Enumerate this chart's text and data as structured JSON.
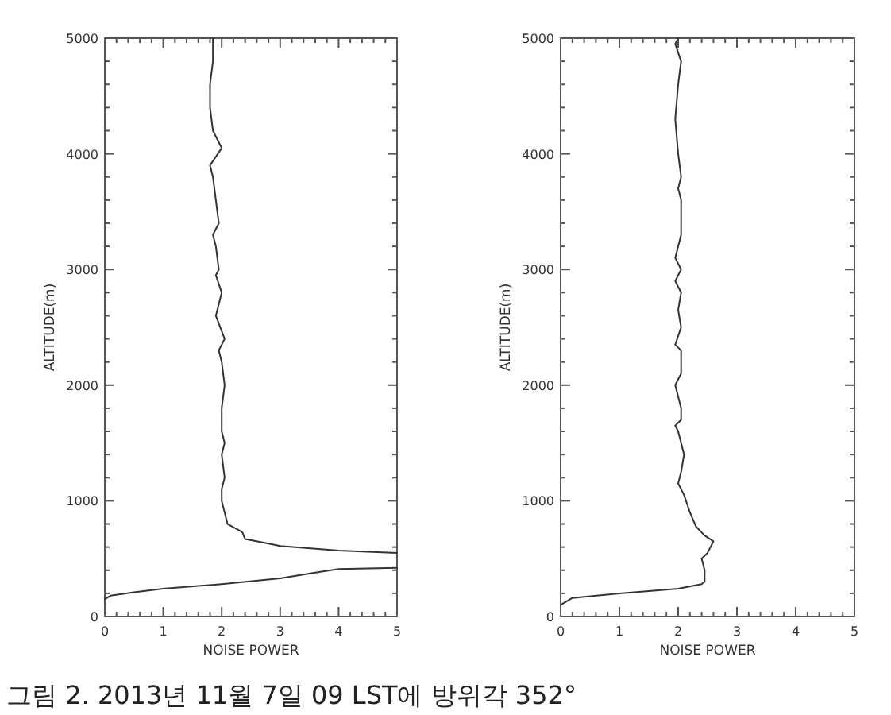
{
  "chart_data": [
    {
      "type": "line",
      "xlabel": "NOISE POWER",
      "ylabel": "ALTITUDE(m)",
      "xlim": [
        0,
        5
      ],
      "ylim": [
        0,
        5000
      ],
      "xticks": [
        0,
        {
          "value": 0.2,
          "label": null
        },
        {
          "value": 0.4,
          "label": null
        },
        {
          "value": 0.6,
          "label": null
        },
        {
          "value": 0.8,
          "label": null
        },
        1,
        {
          "value": 1.2,
          "label": null
        },
        {
          "value": 1.4,
          "label": null
        },
        {
          "value": 1.6,
          "label": null
        },
        {
          "value": 1.8,
          "label": null
        },
        2,
        {
          "value": 2.2,
          "label": null
        },
        {
          "value": 2.4,
          "label": null
        },
        {
          "value": 2.6,
          "label": null
        },
        {
          "value": 2.8,
          "label": null
        },
        3,
        {
          "value": 3.2,
          "label": null
        },
        {
          "value": 3.4,
          "label": null
        },
        {
          "value": 3.6,
          "label": null
        },
        {
          "value": 3.8,
          "label": null
        },
        4,
        {
          "value": 4.2,
          "label": null
        },
        {
          "value": 4.4,
          "label": null
        },
        {
          "value": 4.6,
          "label": null
        },
        {
          "value": 4.8,
          "label": null
        },
        5
      ],
      "yticks": [
        0,
        {
          "value": 200,
          "label": null
        },
        {
          "value": 400,
          "label": null
        },
        {
          "value": 600,
          "label": null
        },
        {
          "value": 800,
          "label": null
        },
        1000,
        {
          "value": 1200,
          "label": null
        },
        {
          "value": 1400,
          "label": null
        },
        {
          "value": 1600,
          "label": null
        },
        {
          "value": 1800,
          "label": null
        },
        2000,
        {
          "value": 2200,
          "label": null
        },
        {
          "value": 2400,
          "label": null
        },
        {
          "value": 2600,
          "label": null
        },
        {
          "value": 2800,
          "label": null
        },
        3000,
        {
          "value": 3200,
          "label": null
        },
        {
          "value": 3400,
          "label": null
        },
        {
          "value": 3600,
          "label": null
        },
        {
          "value": 3800,
          "label": null
        },
        4000,
        {
          "value": 4200,
          "label": null
        },
        {
          "value": 4400,
          "label": null
        },
        {
          "value": 4600,
          "label": null
        },
        {
          "value": 4800,
          "label": null
        },
        5000
      ],
      "series": [
        {
          "color": "#333333",
          "x": [
            0,
            0.1,
            0.5,
            1,
            2,
            3,
            3.6,
            4,
            5,
            null,
            5,
            4,
            3,
            2.7,
            2.4,
            2.35,
            2.1,
            2.05,
            2.0,
            2.0,
            2.05,
            2.0,
            2.05,
            2.0,
            2.0,
            2.05,
            2.0,
            1.95,
            2.05,
            1.9,
            1.95,
            2.0,
            1.9,
            1.95,
            1.9,
            1.85,
            1.95,
            1.9,
            1.85,
            1.8,
            2.0,
            1.9,
            1.85,
            1.8,
            1.8,
            1.85,
            1.85
          ],
          "values": [
            150,
            180,
            210,
            240,
            280,
            330,
            380,
            410,
            420,
            null,
            550,
            570,
            610,
            640,
            670,
            730,
            800,
            900,
            1000,
            1100,
            1200,
            1400,
            1500,
            1600,
            1800,
            2000,
            2200,
            2300,
            2400,
            2600,
            2700,
            2800,
            2950,
            3000,
            3200,
            3300,
            3400,
            3600,
            3800,
            3900,
            4050,
            4150,
            4200,
            4400,
            4600,
            4800,
            5000
          ]
        }
      ],
      "annotations": [
        "그림 2. 2013년 11월 7일 09 LST에 방위각 352°"
      ]
    },
    {
      "type": "line",
      "xlabel": "NOISE POWER",
      "ylabel": "ALTITUDE(m)",
      "xlim": [
        0,
        5
      ],
      "ylim": [
        0,
        5000
      ],
      "xticks": [
        0,
        {
          "value": 0.2,
          "label": null
        },
        {
          "value": 0.4,
          "label": null
        },
        {
          "value": 0.6,
          "label": null
        },
        {
          "value": 0.8,
          "label": null
        },
        1,
        {
          "value": 1.2,
          "label": null
        },
        {
          "value": 1.4,
          "label": null
        },
        {
          "value": 1.6,
          "label": null
        },
        {
          "value": 1.8,
          "label": null
        },
        2,
        {
          "value": 2.2,
          "label": null
        },
        {
          "value": 2.4,
          "label": null
        },
        {
          "value": 2.6,
          "label": null
        },
        {
          "value": 2.8,
          "label": null
        },
        3,
        {
          "value": 3.2,
          "label": null
        },
        {
          "value": 3.4,
          "label": null
        },
        {
          "value": 3.6,
          "label": null
        },
        {
          "value": 3.8,
          "label": null
        },
        4,
        {
          "value": 4.2,
          "label": null
        },
        {
          "value": 4.4,
          "label": null
        },
        {
          "value": 4.6,
          "label": null
        },
        {
          "value": 4.8,
          "label": null
        },
        5
      ],
      "yticks": [
        0,
        {
          "value": 200,
          "label": null
        },
        {
          "value": 400,
          "label": null
        },
        {
          "value": 600,
          "label": null
        },
        {
          "value": 800,
          "label": null
        },
        1000,
        {
          "value": 1200,
          "label": null
        },
        {
          "value": 1400,
          "label": null
        },
        {
          "value": 1600,
          "label": null
        },
        {
          "value": 1800,
          "label": null
        },
        2000,
        {
          "value": 2200,
          "label": null
        },
        {
          "value": 2400,
          "label": null
        },
        {
          "value": 2600,
          "label": null
        },
        {
          "value": 2800,
          "label": null
        },
        3000,
        {
          "value": 3200,
          "label": null
        },
        {
          "value": 3400,
          "label": null
        },
        {
          "value": 3600,
          "label": null
        },
        {
          "value": 3800,
          "label": null
        },
        4000,
        {
          "value": 4200,
          "label": null
        },
        {
          "value": 4400,
          "label": null
        },
        {
          "value": 4600,
          "label": null
        },
        {
          "value": 4800,
          "label": null
        },
        5000
      ],
      "series": [
        {
          "color": "#333333",
          "x": [
            0,
            0.2,
            1,
            2,
            2.4,
            2.45,
            2.45,
            2.4,
            2.5,
            2.6,
            2.45,
            2.3,
            2.2,
            2.1,
            2.0,
            2.05,
            2.1,
            2.05,
            2.0,
            1.95,
            2.05,
            2.05,
            2.0,
            1.95,
            2.05,
            2.05,
            1.95,
            2.05,
            2.0,
            2.05,
            1.95,
            2.05,
            1.95,
            2.05,
            2.05,
            2.0,
            2.05,
            2.0,
            1.95,
            2.0,
            2.05,
            1.95,
            2.0
          ],
          "values": [
            100,
            160,
            200,
            240,
            280,
            300,
            400,
            500,
            550,
            650,
            700,
            780,
            900,
            1050,
            1150,
            1250,
            1400,
            1500,
            1600,
            1650,
            1700,
            1800,
            1900,
            2000,
            2100,
            2300,
            2350,
            2500,
            2650,
            2800,
            2900,
            3000,
            3100,
            3300,
            3600,
            3700,
            3800,
            4000,
            4300,
            4600,
            4800,
            4950,
            5000
          ]
        }
      ]
    }
  ]
}
